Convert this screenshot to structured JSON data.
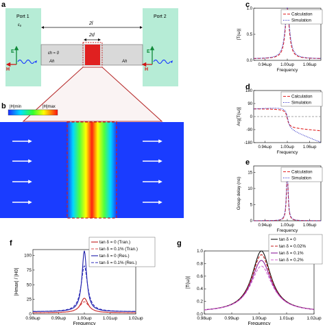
{
  "panel_labels": {
    "a": "a",
    "b": "b",
    "c": "c",
    "d": "d",
    "e": "e",
    "f": "f",
    "g": "g"
  },
  "panel_a": {
    "port1": "Port 1",
    "port2": "Port 2",
    "eps0": "ε₀",
    "len_2l": "2l",
    "len_2d": "2d",
    "epsh": "εh ≈ 0",
    "ah_left": "Ah",
    "ah_right": "Ah",
    "e_label": "E",
    "h_label": "H",
    "e_label2": "E",
    "h_label2": "H",
    "colors": {
      "port": "#b6ecd6",
      "channel": "#d9d9d9",
      "block": "#e02020",
      "funnel": "#b83030"
    }
  },
  "panel_b": {
    "cb_left": "|H|min",
    "cb_right": "|H|max",
    "colors": {
      "field": "#1a3cff",
      "box": "#c82020",
      "arrow": "#ffffff"
    }
  },
  "chart_data": [
    {
      "panel": "c",
      "type": "line",
      "xlabel": "Frequency",
      "ylabel": "|T(ω)|",
      "ylim": [
        0.0,
        1.0
      ],
      "xlim": [
        0.91,
        1.09
      ],
      "yticks": [
        "0.0",
        "0.5",
        "1.0"
      ],
      "xticks": [
        {
          "v": 0.94,
          "label": "0.94ωp"
        },
        {
          "v": 1.0,
          "label": "1.00ωp"
        },
        {
          "v": 1.06,
          "label": "1.06ωp"
        }
      ],
      "legend": "top-right",
      "series": [
        {
          "name": "Calculation",
          "color": "#e02020",
          "style": "dashed"
        },
        {
          "name": "Simulation",
          "color": "#2020c0",
          "style": "dotted"
        }
      ]
    },
    {
      "panel": "d",
      "type": "line",
      "xlabel": "Frequency",
      "ylabel": "Arg[T(ω)]",
      "ylim": [
        -180,
        180
      ],
      "xlim": [
        0.91,
        1.09
      ],
      "yticks": [
        "180",
        "90",
        "0",
        "-90",
        "-180"
      ],
      "xticks": [
        {
          "v": 0.94,
          "label": "0.94ωp"
        },
        {
          "v": 1.0,
          "label": "1.00ωp"
        },
        {
          "v": 1.06,
          "label": "1.06ωp"
        }
      ],
      "legend": "top-right",
      "series": [
        {
          "name": "Calculation",
          "color": "#e02020",
          "style": "dashed"
        },
        {
          "name": "Simulation",
          "color": "#2020c0",
          "style": "dotted"
        }
      ]
    },
    {
      "panel": "e",
      "type": "line",
      "xlabel": "Frequency",
      "ylabel": "Group delay (ns)",
      "ylim": [
        0,
        17
      ],
      "xlim": [
        0.91,
        1.09
      ],
      "yticks": [
        "0",
        "5",
        "10",
        "15"
      ],
      "xticks": [
        {
          "v": 0.94,
          "label": "0.94ωp"
        },
        {
          "v": 1.0,
          "label": "1.00ωp"
        },
        {
          "v": 1.06,
          "label": "1.06ωp"
        }
      ],
      "legend": "top-right",
      "series": [
        {
          "name": "Calculation",
          "color": "#e02020",
          "style": "dashed"
        },
        {
          "name": "Simulation",
          "color": "#2020c0",
          "style": "dotted"
        }
      ]
    },
    {
      "panel": "f",
      "type": "line",
      "xlabel": "Frequency",
      "ylabel": "|Hmax| / |H0|",
      "ylim": [
        0,
        110
      ],
      "xlim": [
        0.98,
        1.02
      ],
      "yticks": [
        "0",
        "25",
        "50",
        "75",
        "100"
      ],
      "xticks": [
        {
          "v": 0.98,
          "label": "0.98ωp"
        },
        {
          "v": 0.99,
          "label": "0.99ωp"
        },
        {
          "v": 1.0,
          "label": "1.00ωp"
        },
        {
          "v": 1.01,
          "label": "1.01ωp"
        },
        {
          "v": 1.02,
          "label": "1.02ωp"
        }
      ],
      "legend": "top-right",
      "series": [
        {
          "name": "tan δ = 0 (Tran.)",
          "color": "#c01818",
          "style": "solid"
        },
        {
          "name": "tan δ = 0.1% (Tran.)",
          "color": "#d84a4a",
          "style": "dashed"
        },
        {
          "name": "tan δ = 0 (Res.)",
          "color": "#1a1aa8",
          "style": "solid"
        },
        {
          "name": "tan δ = 0.1% (Res.)",
          "color": "#2a2ab8",
          "style": "dashed"
        }
      ]
    },
    {
      "panel": "g",
      "type": "line",
      "xlabel": "Frequency",
      "ylabel": "|T(ω)|",
      "ylim": [
        0.0,
        1.0
      ],
      "xlim": [
        0.98,
        1.02
      ],
      "yticks": [
        "0.0",
        "0.2",
        "0.4",
        "0.6",
        "0.8",
        "1.0"
      ],
      "xticks": [
        {
          "v": 0.98,
          "label": "0.98ωp"
        },
        {
          "v": 0.99,
          "label": "0.99ωp"
        },
        {
          "v": 1.0,
          "label": "1.00ωp"
        },
        {
          "v": 1.01,
          "label": "1.01ωp"
        },
        {
          "v": 1.02,
          "label": "1.02ωp"
        }
      ],
      "legend": "top-right",
      "series": [
        {
          "name": "tan δ = 0",
          "color": "#111111",
          "style": "solid"
        },
        {
          "name": "tan δ = 0.02%",
          "color": "#c01818",
          "style": "dashed"
        },
        {
          "name": "tan δ = 0.1%",
          "color": "#8a1c9a",
          "style": "solid"
        },
        {
          "name": "tan δ = 0.2%",
          "color": "#d060d0",
          "style": "dashed"
        }
      ]
    }
  ]
}
